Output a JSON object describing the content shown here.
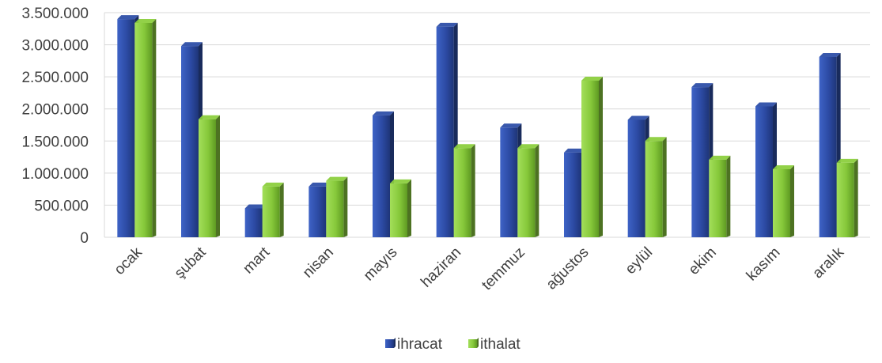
{
  "chart_data": {
    "type": "bar",
    "title": "",
    "xlabel": "",
    "ylabel": "",
    "ylim": [
      0,
      3500000
    ],
    "yticks": [
      0,
      500000,
      1000000,
      1500000,
      2000000,
      2500000,
      3000000,
      3500000
    ],
    "ytick_labels": [
      "0",
      "500.000",
      "1.000.000",
      "1.500.000",
      "2.000.000",
      "2.500.000",
      "3.000.000",
      "3.500.000"
    ],
    "grid": true,
    "legend_position": "bottom",
    "categories": [
      "ocak",
      "şubat",
      "mart",
      "nisan",
      "mayıs",
      "haziran",
      "temmuz",
      "ağustos",
      "eylül",
      "ekim",
      "kasım",
      "aralık"
    ],
    "series": [
      {
        "name": "ihracat",
        "color": "#2E4FA8",
        "values": [
          3400000,
          2980000,
          450000,
          790000,
          1900000,
          3280000,
          1710000,
          1320000,
          1830000,
          2340000,
          2040000,
          2810000
        ]
      },
      {
        "name": "ithalat",
        "color": "#8CCF3E",
        "values": [
          3340000,
          1840000,
          790000,
          880000,
          840000,
          1390000,
          1390000,
          2440000,
          1500000,
          1210000,
          1060000,
          1160000
        ]
      }
    ]
  }
}
